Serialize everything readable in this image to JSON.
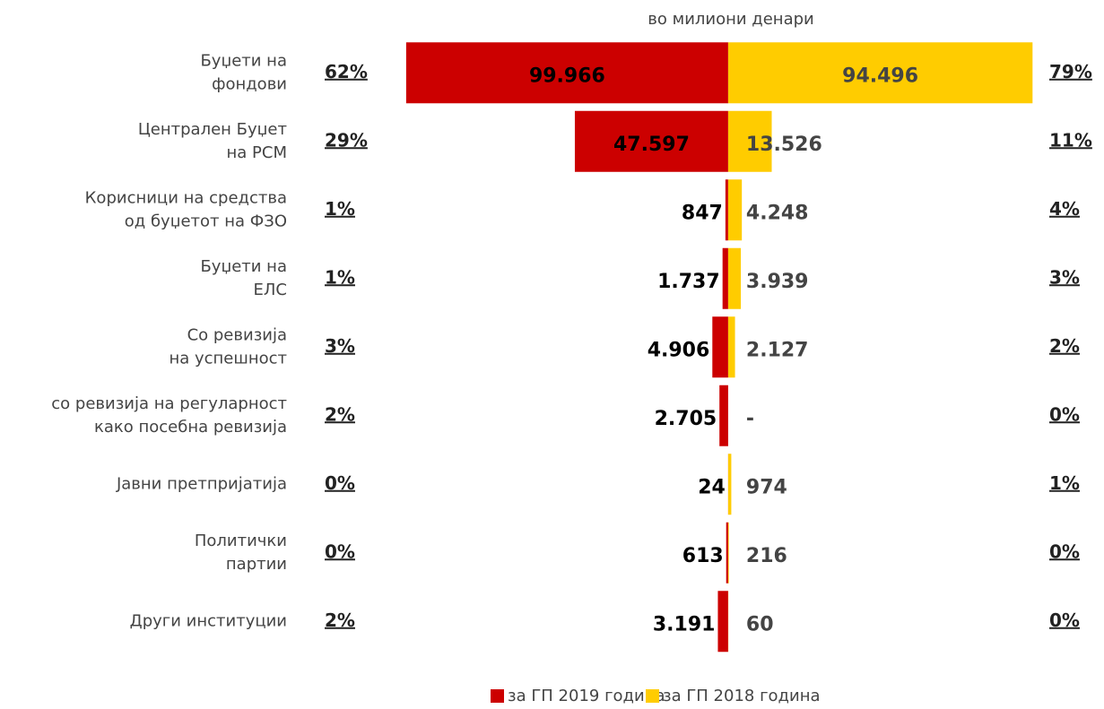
{
  "chart_data": {
    "type": "butterfly",
    "subtitle": "во милиони денари",
    "categories": [
      [
        "Буџети на",
        "фондови"
      ],
      [
        "Централен Буџет",
        "на РСМ"
      ],
      [
        "Корисници на средства",
        "од буџетот на ФЗО"
      ],
      [
        "Буџети на",
        "ЕЛС"
      ],
      [
        "Со ревизија",
        "на успешност"
      ],
      [
        "со ревизија на регуларност",
        "како посебна ревизија"
      ],
      [
        "Јавни претпријатија"
      ],
      [
        "Политички",
        "партии"
      ],
      [
        "Други институции"
      ]
    ],
    "xlim": [
      -130000,
      110000
    ],
    "series": [
      {
        "name": "за ГП 2019 година",
        "color": "#cc0000",
        "side": "left",
        "values": [
          99966,
          47597,
          847,
          1737,
          4906,
          2705,
          24,
          613,
          3191
        ],
        "value_labels": [
          "99.966",
          "47.597",
          "847",
          "1.737",
          "4.906",
          "2.705",
          "24",
          "613",
          "3.191"
        ],
        "share_labels": [
          "62%",
          "29%",
          "1%",
          "1%",
          "3%",
          "2%",
          "0%",
          "0%",
          "2%"
        ]
      },
      {
        "name": "за ГП 2018 година",
        "color": "#ffcc00",
        "side": "right",
        "values": [
          94496,
          13526,
          4248,
          3939,
          2127,
          0,
          974,
          216,
          60
        ],
        "value_labels": [
          "94.496",
          "13.526",
          "4.248",
          "3.939",
          "2.127",
          "-",
          "974",
          "216",
          "60"
        ],
        "share_labels": [
          "79%",
          "11%",
          "4%",
          "3%",
          "2%",
          "0%",
          "1%",
          "0%",
          "0%"
        ]
      }
    ]
  }
}
